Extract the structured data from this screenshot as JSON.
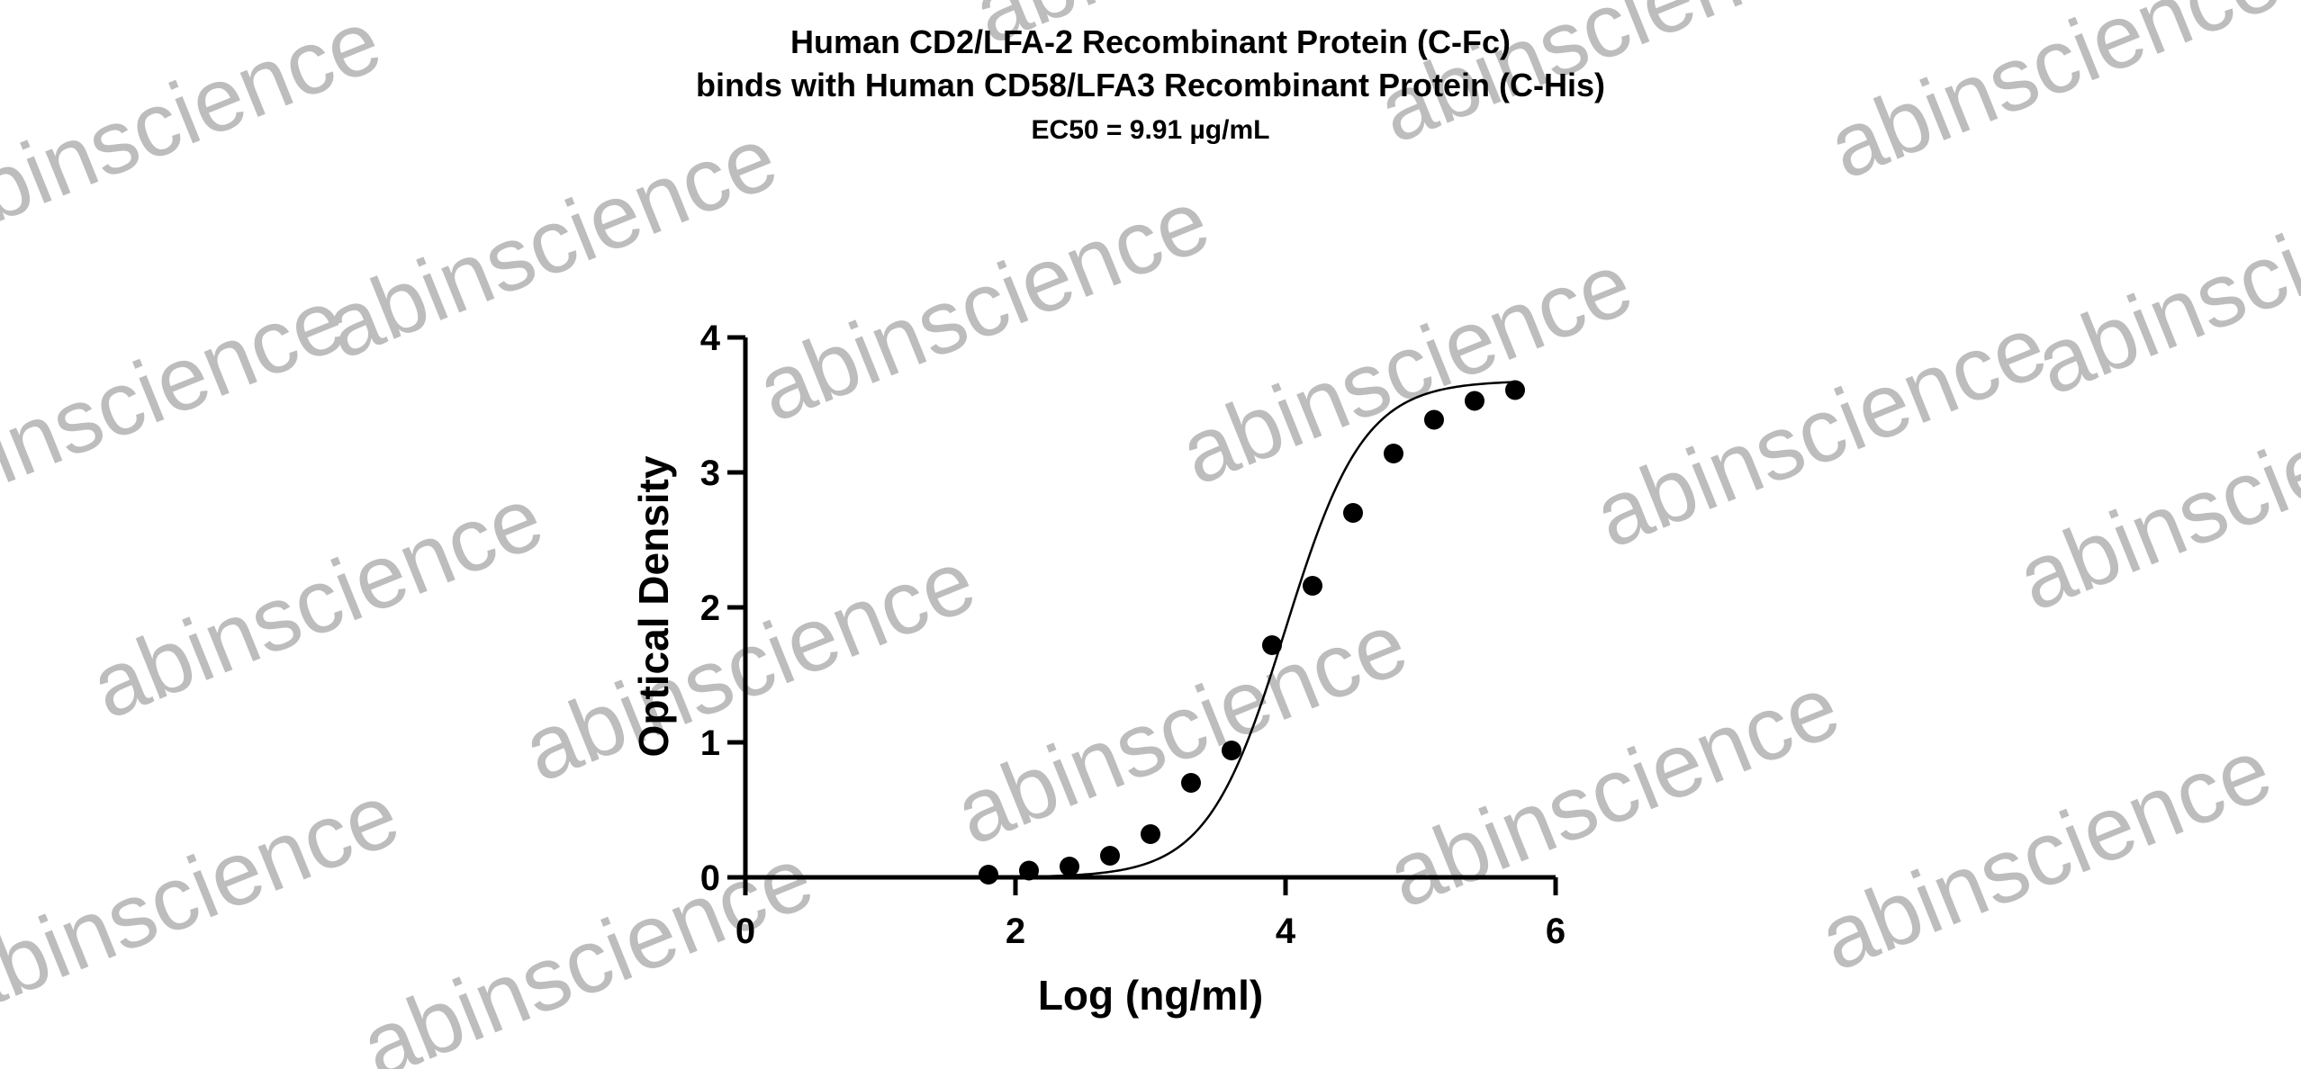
{
  "watermark": "abinscience",
  "chart_data": {
    "type": "scatter",
    "title_lines": [
      "Human CD2/LFA-2 Recombinant Protein (C-Fc)",
      "binds with Human CD58/LFA3 Recombinant Protein (C-His)",
      "EC50 = 9.91 µg/mL"
    ],
    "xlabel": "Log (ng/ml)",
    "ylabel": "Optical Density",
    "xlim": [
      0,
      6
    ],
    "ylim": [
      0,
      4
    ],
    "xticks": [
      "0",
      "2",
      "4",
      "6"
    ],
    "yticks": [
      "0",
      "1",
      "2",
      "3",
      "4"
    ],
    "grid": false,
    "legend": "none",
    "marker_color": "#000000",
    "curve_color": "#000000",
    "series": [
      {
        "x": [
          1.8,
          2.1,
          2.4,
          2.7,
          3.0,
          3.3,
          3.6,
          3.9,
          4.2,
          4.5,
          4.8,
          5.1,
          5.4,
          5.7
        ],
        "y": [
          0.02,
          0.05,
          0.08,
          0.16,
          0.32,
          0.7,
          0.94,
          1.72,
          2.16,
          2.7,
          3.14,
          3.39,
          3.53,
          3.61
        ]
      }
    ],
    "fit_curve": {
      "model": "4PL",
      "bottom": 0.0,
      "top": 3.68,
      "log_ec50": 4.0,
      "hill": 1.5
    }
  }
}
